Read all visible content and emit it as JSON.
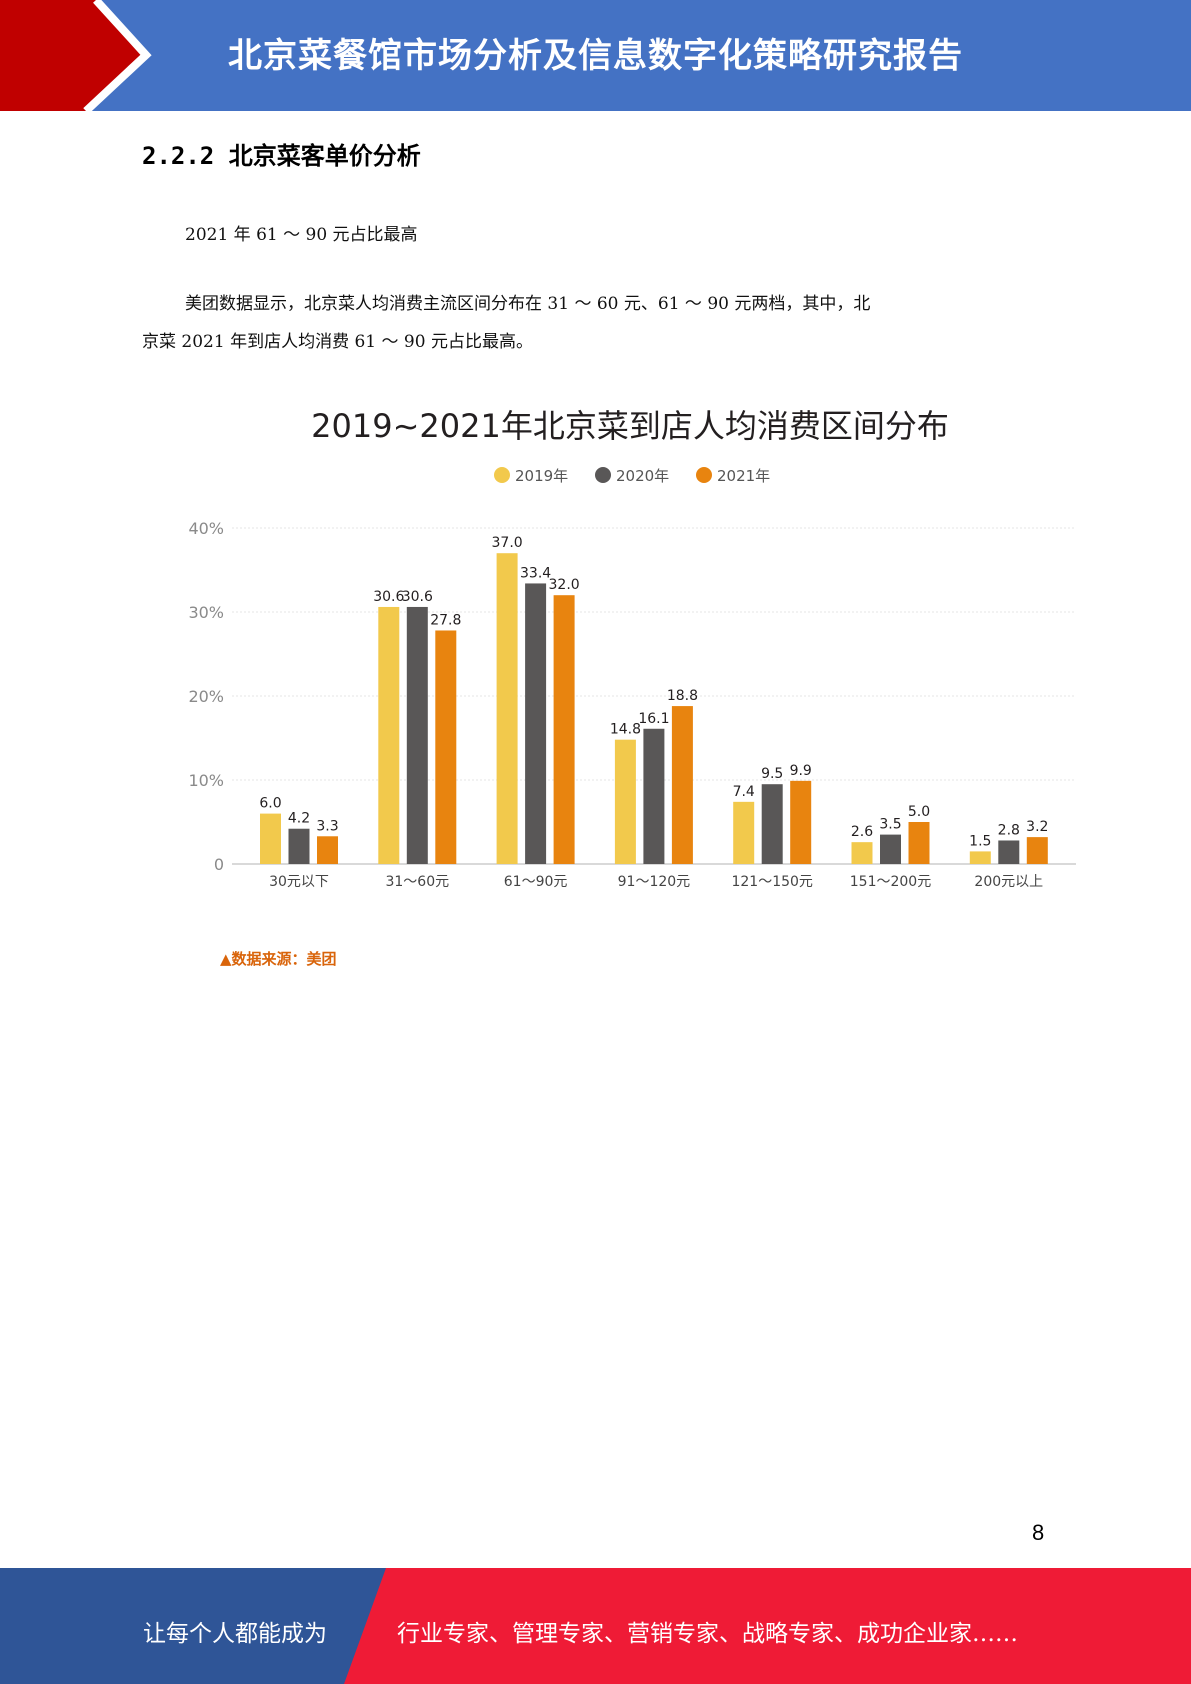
{
  "header": {
    "title": "北京菜餐馆市场分析及信息数字化策略研究报告"
  },
  "section": {
    "heading": "2.2.2 北京菜客单价分析"
  },
  "body": {
    "subtitle": "2021 年 61 ～ 90 元占比最高",
    "paragraph_line1": "美团数据显示，北京菜人均消费主流区间分布在 31 ～ 60 元、61 ～ 90 元两档，其中，北",
    "paragraph_line2": "京菜 2021 年到店人均消费 61 ～ 90 元占比最高。"
  },
  "chart_data": {
    "type": "bar",
    "title": "2019~2021年北京菜到店人均消费区间分布",
    "categories": [
      "30元以下",
      "31～60元",
      "61～90元",
      "91～120元",
      "121～150元",
      "151～200元",
      "200元以上"
    ],
    "series": [
      {
        "name": "2019年",
        "color": "#f2c94c",
        "values": [
          6.0,
          30.6,
          37.0,
          14.8,
          7.4,
          2.6,
          1.5
        ]
      },
      {
        "name": "2020年",
        "color": "#595757",
        "values": [
          4.2,
          30.6,
          33.4,
          16.1,
          9.5,
          3.5,
          2.8
        ]
      },
      {
        "name": "2021年",
        "color": "#e8840f",
        "values": [
          3.3,
          27.8,
          32.0,
          18.8,
          9.9,
          5.0,
          3.2
        ]
      }
    ],
    "yticks": [
      "0",
      "10%",
      "20%",
      "30%",
      "40%"
    ],
    "ylim": [
      0,
      40
    ],
    "grid": true,
    "legend": "top-center",
    "source": "▲数据来源：美团"
  },
  "page": {
    "number": "8"
  },
  "footer": {
    "left": "让每个人都能成为",
    "right": "行业专家、管理专家、营销专家、战略专家、成功企业家……"
  },
  "colors": {
    "header_blue": "#4472c4",
    "header_red": "#c00000",
    "footer_blue": "#2f5597",
    "footer_red": "#ef1b36"
  }
}
